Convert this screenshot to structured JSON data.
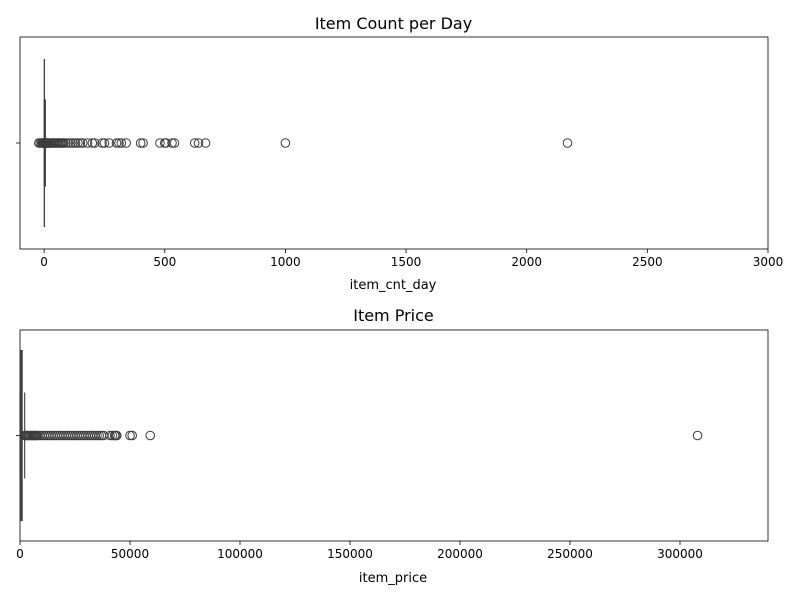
{
  "chart_data": [
    {
      "type": "box",
      "title": "Item Count per Day",
      "xlabel": "item_cnt_day",
      "ylabel": "",
      "xlim": [
        -100,
        3000
      ],
      "xticks": [
        0,
        500,
        1000,
        1500,
        2000,
        2500,
        3000
      ],
      "xtick_labels": [
        "0",
        "500",
        "1000",
        "1500",
        "2000",
        "2500",
        "3000"
      ],
      "box": {
        "q1": 1,
        "median": 1,
        "q3": 1,
        "whisker_low": 1,
        "whisker_high": 1
      },
      "fliers": [
        -22,
        -16,
        -10,
        -6,
        -4,
        -3,
        -2,
        -1,
        2,
        3,
        4,
        5,
        6,
        8,
        10,
        12,
        15,
        18,
        20,
        25,
        30,
        35,
        40,
        45,
        50,
        55,
        60,
        65,
        70,
        75,
        80,
        90,
        100,
        110,
        120,
        130,
        140,
        150,
        160,
        180,
        200,
        210,
        240,
        250,
        270,
        300,
        310,
        320,
        340,
        400,
        410,
        480,
        500,
        505,
        530,
        540,
        624,
        640,
        669,
        1000,
        2169
      ],
      "grid": false,
      "legend": "none"
    },
    {
      "type": "box",
      "title": "Item Price",
      "xlabel": "item_price",
      "ylabel": "",
      "xlim": [
        0,
        340000
      ],
      "xticks": [
        0,
        50000,
        100000,
        150000,
        200000,
        250000,
        300000
      ],
      "xtick_labels": [
        "0",
        "50000",
        "100000",
        "150000",
        "200000",
        "250000",
        "300000"
      ],
      "box": {
        "q1": 249,
        "median": 399,
        "q3": 999,
        "whisker_low": -1,
        "whisker_high": 2124
      },
      "fliers": [
        2200,
        2500,
        3000,
        3500,
        4000,
        4500,
        5000,
        5500,
        6000,
        6500,
        7000,
        7500,
        8000,
        9000,
        10000,
        11000,
        12000,
        13000,
        14000,
        15000,
        16000,
        17000,
        18000,
        19000,
        20000,
        21000,
        22000,
        23000,
        24000,
        25000,
        26000,
        27000,
        28000,
        29000,
        30000,
        31000,
        32000,
        33000,
        34000,
        35000,
        36000,
        37000,
        38000,
        40900,
        42000,
        42990,
        43500,
        44000,
        50000,
        51000,
        59200,
        307980
      ],
      "grid": false,
      "legend": "none"
    }
  ],
  "colors": {
    "box_fill": "#3a75af",
    "line": "#3c3c3c"
  }
}
